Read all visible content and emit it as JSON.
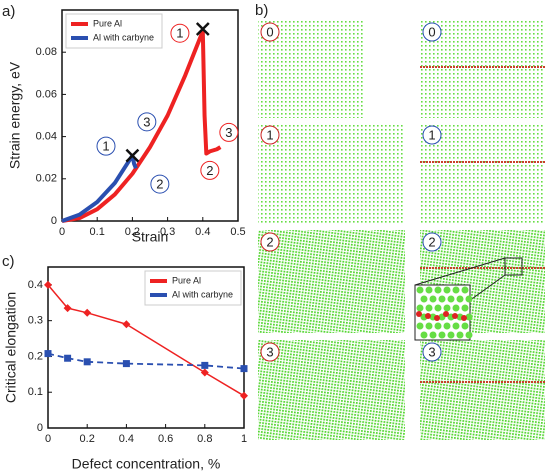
{
  "chart_data": [
    {
      "type": "line",
      "panel_label": "a)",
      "xlabel": "Strain",
      "ylabel": "Strain energy, eV",
      "xlim": [
        0,
        0.5
      ],
      "xticks": [
        0,
        0.1,
        0.2,
        0.3,
        0.4,
        0.5
      ],
      "ylim": [
        0,
        0.1
      ],
      "yticks": [
        0,
        0.02,
        0.04,
        0.06,
        0.08
      ],
      "legend": "upper left",
      "series": [
        {
          "name": "Pure Al",
          "color": "#ee2222",
          "linewidth": 4,
          "x": [
            0,
            0.05,
            0.1,
            0.15,
            0.2,
            0.25,
            0.3,
            0.35,
            0.4,
            0.405,
            0.41,
            0.42,
            0.44,
            0.45
          ],
          "values": [
            0,
            0.0014,
            0.0056,
            0.0126,
            0.0224,
            0.035,
            0.05,
            0.069,
            0.09,
            0.05,
            0.032,
            0.033,
            0.034,
            0.035
          ]
        },
        {
          "name": "Al with carbyne",
          "color": "#2a4fb0",
          "linewidth": 4,
          "x": [
            0,
            0.05,
            0.1,
            0.15,
            0.2,
            0.205,
            0.21
          ],
          "values": [
            0,
            0.003,
            0.009,
            0.018,
            0.031,
            0.027,
            0.025
          ]
        }
      ],
      "peaks": [
        {
          "x": 0.4,
          "y": 0.091
        },
        {
          "x": 0.2,
          "y": 0.031
        }
      ],
      "annotations": [
        {
          "text": "1",
          "color": "#ee2222",
          "x": 0.335,
          "y": 0.089
        },
        {
          "text": "2",
          "color": "#ee2222",
          "x": 0.42,
          "y": 0.024
        },
        {
          "text": "3",
          "color": "#ee2222",
          "x": 0.474,
          "y": 0.042
        },
        {
          "text": "1",
          "color": "#2a4fb0",
          "x": 0.125,
          "y": 0.0355
        },
        {
          "text": "2",
          "color": "#2a4fb0",
          "x": 0.278,
          "y": 0.0175
        },
        {
          "text": "3",
          "color": "#2a4fb0",
          "x": 0.241,
          "y": 0.047
        }
      ]
    },
    {
      "type": "line",
      "panel_label": "c)",
      "xlabel": "Defect concentration, %",
      "ylabel": "Critical elongation",
      "xlim": [
        0,
        1
      ],
      "xticks": [
        0,
        0.2,
        0.4,
        0.6,
        0.8,
        1
      ],
      "ylim": [
        0,
        0.45
      ],
      "yticks": [
        0,
        0.1,
        0.2,
        0.3,
        0.4
      ],
      "legend": "upper right",
      "x": [
        0,
        0.1,
        0.2,
        0.4,
        0.8,
        1
      ],
      "series": [
        {
          "name": "Pure Al",
          "color": "#ee2222",
          "linewidth": 1.5,
          "marker": "diamond",
          "linestyle": "solid",
          "values": [
            0.4,
            0.335,
            0.322,
            0.29,
            0.155,
            0.09
          ]
        },
        {
          "name": "Al with carbyne",
          "color": "#2a4fb0",
          "linewidth": 1.8,
          "marker": "square",
          "linestyle": "dashed",
          "values": [
            0.208,
            0.195,
            0.185,
            0.18,
            0.175,
            0.166
          ]
        }
      ]
    }
  ],
  "panel_b": {
    "label": "b)",
    "frames": [
      {
        "label": "0",
        "color": "#cc2222"
      },
      {
        "label": "0",
        "color": "#2a4fb0"
      },
      {
        "label": "1",
        "color": "#cc2222"
      },
      {
        "label": "1",
        "color": "#2a4fb0"
      },
      {
        "label": "2",
        "color": "#cc2222"
      },
      {
        "label": "2",
        "color": "#2a4fb0"
      },
      {
        "label": "3",
        "color": "#cc2222"
      },
      {
        "label": "3",
        "color": "#2a4fb0"
      }
    ]
  }
}
